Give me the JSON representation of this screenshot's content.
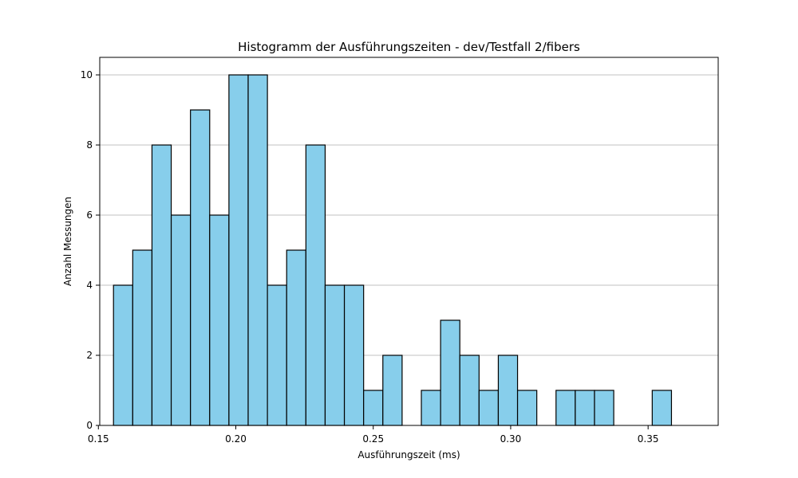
{
  "chart_data": {
    "type": "bar",
    "title": "Histogramm der Ausführungszeiten - dev/Testfall 2/fibers",
    "xlabel": "Ausführungszeit (ms)",
    "ylabel": "Anzahl Messungen",
    "xlim": [
      0.1505,
      0.3755
    ],
    "ylim": [
      0,
      10.5
    ],
    "bin_start": 0.1555,
    "bin_width": 0.007,
    "counts": [
      4,
      5,
      8,
      6,
      9,
      6,
      10,
      10,
      4,
      5,
      8,
      4,
      4,
      1,
      2,
      0,
      1,
      3,
      2,
      1,
      2,
      1,
      0,
      1,
      1,
      1,
      0,
      0,
      1,
      0
    ],
    "x_ticks": [
      "0.15",
      "0.20",
      "0.25",
      "0.30",
      "0.35"
    ],
    "x_tick_values": [
      0.15,
      0.2,
      0.25,
      0.3,
      0.35
    ],
    "y_ticks": [
      "0",
      "2",
      "4",
      "6",
      "8",
      "10"
    ],
    "y_tick_values": [
      0,
      2,
      4,
      6,
      8,
      10
    ],
    "grid": "y-axis",
    "bar_color": "#87ceeb",
    "edge_color": "#000000",
    "grid_color": "#c0c0c0"
  }
}
